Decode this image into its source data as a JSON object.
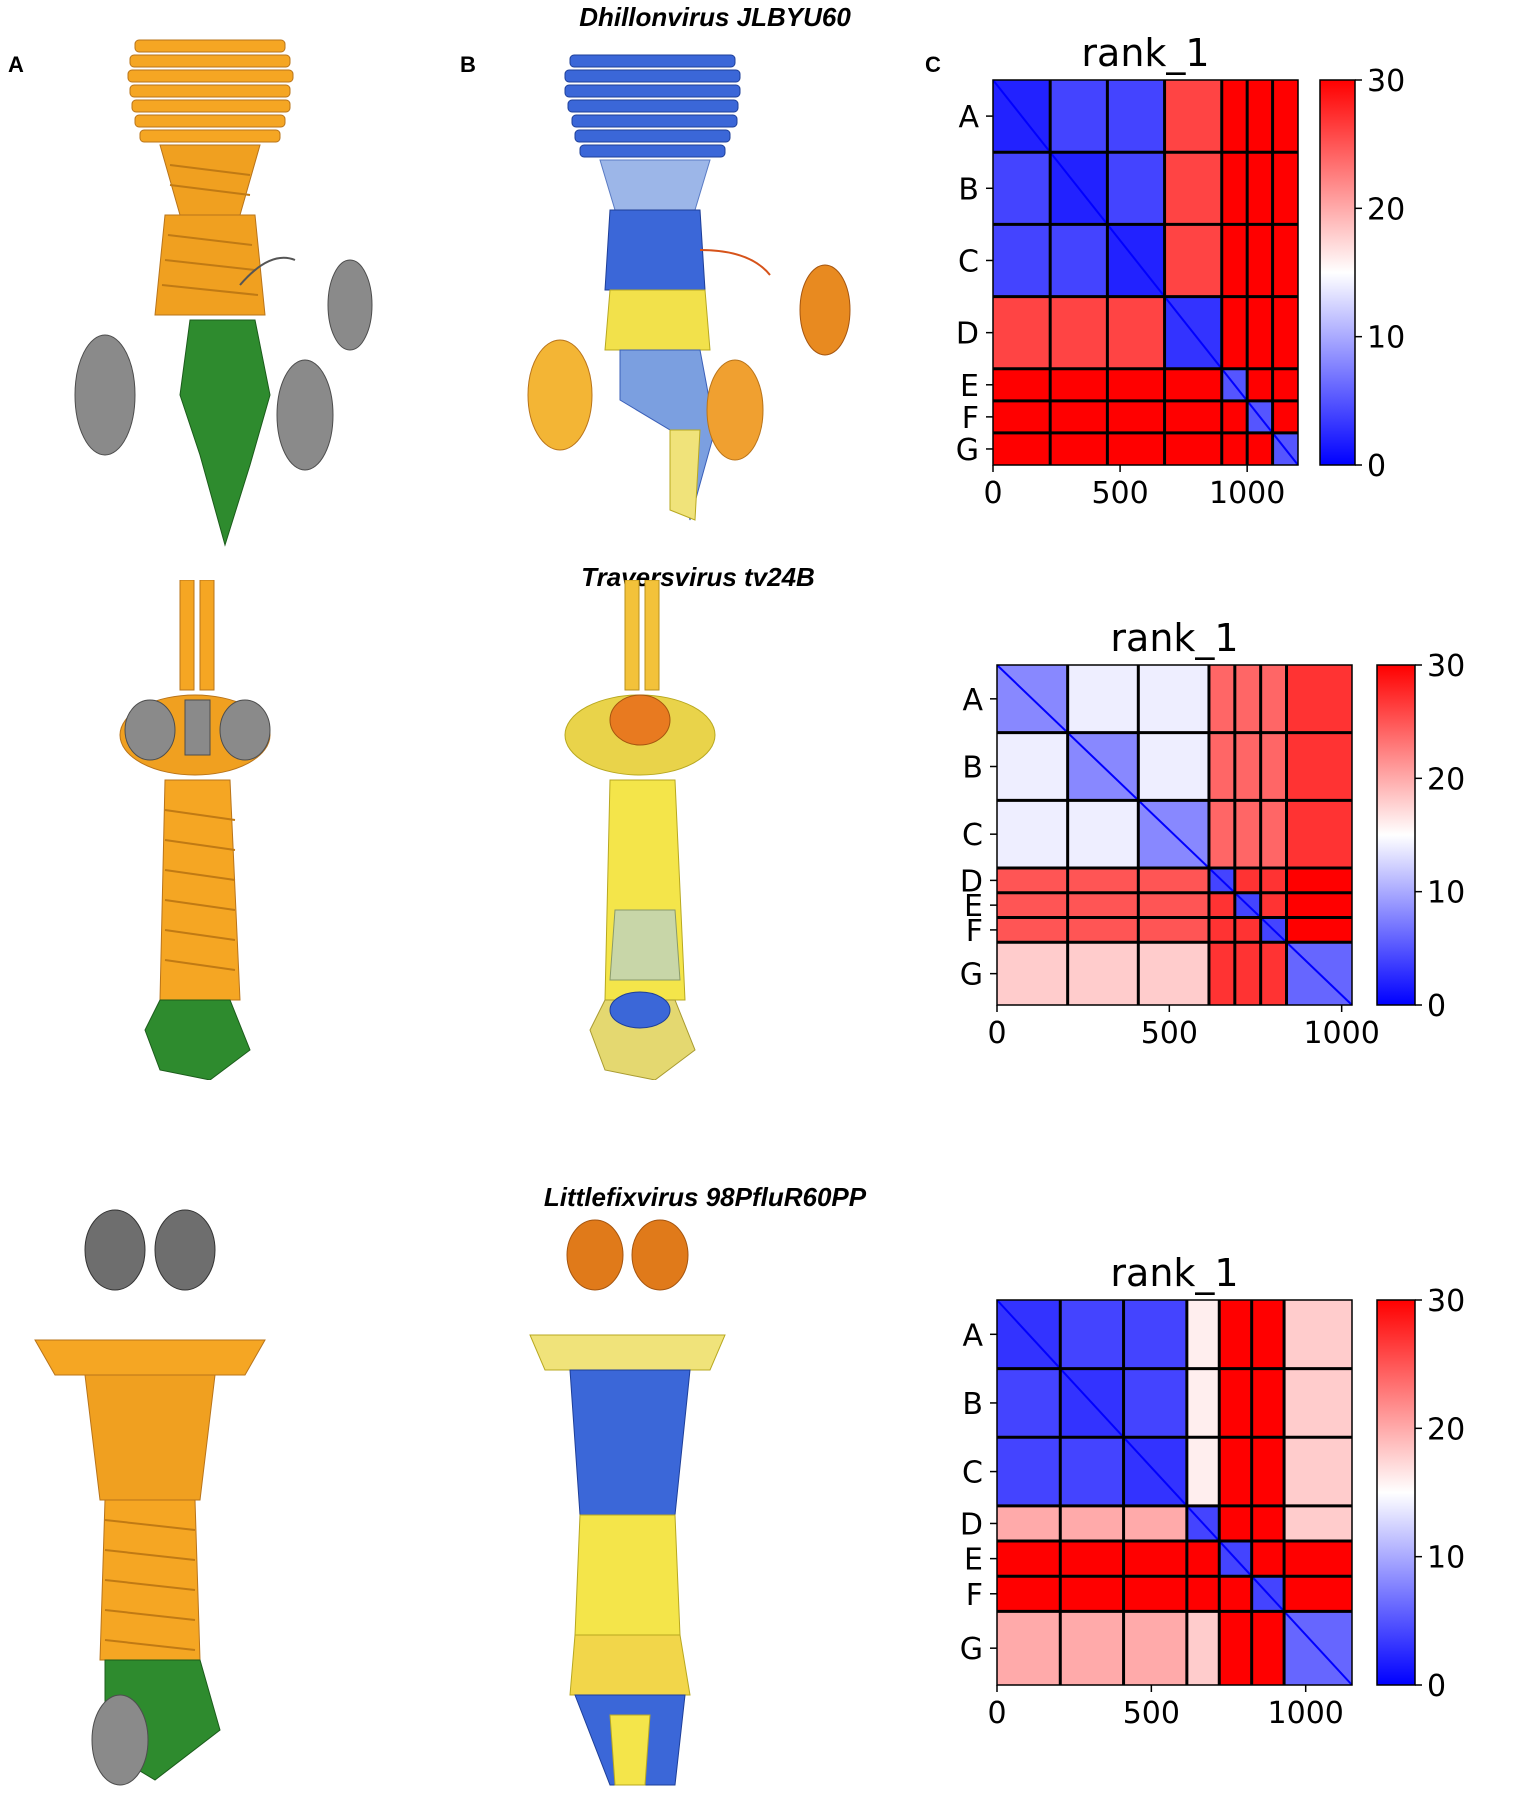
{
  "panel_labels": {
    "a": "A",
    "b": "B",
    "c": "C"
  },
  "species": [
    "Dhillonvirus JLBYU60",
    "Traversvirus tv24B",
    "Littlefixvirus 98PfluR60PP"
  ],
  "colors": {
    "orange_chain": "#f5a623",
    "green_chain": "#2e8b2e",
    "grey_chain": "#7a7a7a",
    "plddt_high": "#2a5bd7",
    "plddt_mid": "#f2e14b",
    "plddt_low": "#e8591a",
    "pae_low": "#0000ff",
    "pae_mid": "#ffffff",
    "pae_high": "#ff0000"
  },
  "chart_data": [
    {
      "type": "heatmap",
      "title": "rank_1",
      "chains": [
        "A",
        "B",
        "C",
        "D",
        "E",
        "F",
        "G"
      ],
      "chain_boundaries": [
        0,
        225,
        450,
        675,
        900,
        1000,
        1100,
        1200
      ],
      "xlim": [
        0,
        1200
      ],
      "xticks": [
        "0",
        "500",
        "1000"
      ],
      "colorbar": {
        "min": 0,
        "max": 30,
        "ticks": [
          "0",
          "10",
          "20",
          "30"
        ]
      },
      "block_pae": [
        [
          2,
          4,
          4,
          26,
          30,
          30,
          30
        ],
        [
          4,
          2,
          4,
          26,
          30,
          30,
          30
        ],
        [
          4,
          4,
          2,
          26,
          30,
          30,
          30
        ],
        [
          26,
          26,
          26,
          3,
          30,
          30,
          30
        ],
        [
          30,
          30,
          30,
          30,
          5,
          30,
          30
        ],
        [
          30,
          30,
          30,
          30,
          30,
          5,
          30
        ],
        [
          30,
          30,
          30,
          30,
          30,
          30,
          5
        ]
      ]
    },
    {
      "type": "heatmap",
      "title": "rank_1",
      "chains": [
        "A",
        "B",
        "C",
        "D",
        "E",
        "F",
        "G"
      ],
      "chain_boundaries": [
        0,
        205,
        410,
        615,
        690,
        765,
        840,
        1030
      ],
      "xlim": [
        0,
        1030
      ],
      "xticks": [
        "0",
        "500",
        "1000"
      ],
      "colorbar": {
        "min": 0,
        "max": 30,
        "ticks": [
          "0",
          "10",
          "20",
          "30"
        ]
      },
      "block_pae": [
        [
          8,
          14,
          14,
          24,
          24,
          24,
          27
        ],
        [
          14,
          8,
          14,
          24,
          24,
          24,
          27
        ],
        [
          14,
          14,
          8,
          24,
          24,
          24,
          27
        ],
        [
          25,
          25,
          25,
          4,
          27,
          27,
          30
        ],
        [
          25,
          25,
          25,
          27,
          4,
          27,
          30
        ],
        [
          25,
          25,
          25,
          27,
          27,
          4,
          30
        ],
        [
          18,
          18,
          18,
          27,
          27,
          27,
          6
        ]
      ]
    },
    {
      "type": "heatmap",
      "title": "rank_1",
      "chains": [
        "A",
        "B",
        "C",
        "D",
        "E",
        "F",
        "G"
      ],
      "chain_boundaries": [
        0,
        205,
        410,
        615,
        720,
        825,
        930,
        1150
      ],
      "xlim": [
        0,
        1150
      ],
      "xticks": [
        "0",
        "500",
        "1000"
      ],
      "colorbar": {
        "min": 0,
        "max": 30,
        "ticks": [
          "0",
          "10",
          "20",
          "30"
        ]
      },
      "block_pae": [
        [
          3,
          4,
          4,
          16,
          30,
          30,
          18
        ],
        [
          4,
          3,
          4,
          16,
          30,
          30,
          18
        ],
        [
          4,
          4,
          3,
          16,
          30,
          30,
          18
        ],
        [
          20,
          20,
          20,
          4,
          30,
          30,
          18
        ],
        [
          30,
          30,
          30,
          30,
          4,
          30,
          30
        ],
        [
          30,
          30,
          30,
          30,
          30,
          4,
          30
        ],
        [
          20,
          20,
          20,
          18,
          30,
          30,
          6
        ]
      ]
    }
  ]
}
